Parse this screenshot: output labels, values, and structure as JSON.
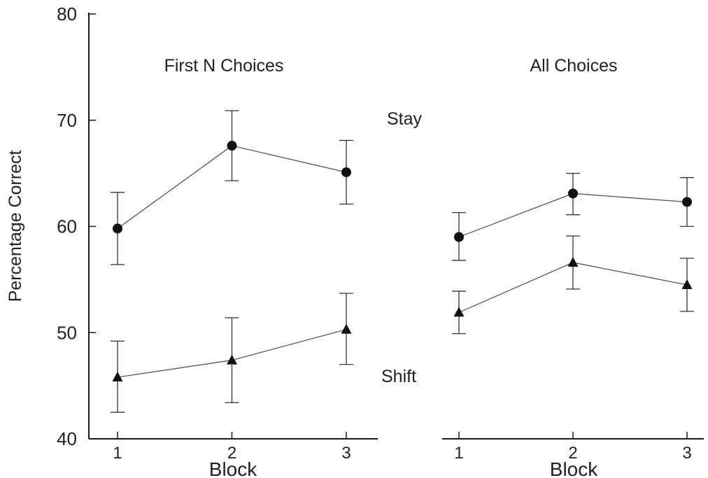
{
  "chart_data": {
    "type": "line",
    "ylabel": "Percentage Correct",
    "ylim": [
      40,
      80
    ],
    "yticks": [
      40,
      50,
      60,
      70,
      80
    ],
    "annotations": [
      "Stay",
      "Shift"
    ],
    "panels": [
      {
        "title": "First N Choices",
        "xlabel": "Block",
        "x": [
          1,
          2,
          3
        ],
        "series": [
          {
            "marker": "circle",
            "values": [
              59.8,
              67.6,
              65.1
            ],
            "err_low": [
              56.4,
              64.3,
              62.1
            ],
            "err_high": [
              63.2,
              70.9,
              68.1
            ]
          },
          {
            "marker": "triangle",
            "values": [
              45.8,
              47.4,
              50.3
            ],
            "err_low": [
              42.5,
              43.4,
              47.0
            ],
            "err_high": [
              49.2,
              51.4,
              53.7
            ]
          }
        ]
      },
      {
        "title": "All Choices",
        "xlabel": "Block",
        "x": [
          1,
          2,
          3
        ],
        "series": [
          {
            "marker": "circle",
            "values": [
              59.0,
              63.1,
              62.3
            ],
            "err_low": [
              56.8,
              61.1,
              60.0
            ],
            "err_high": [
              61.3,
              65.0,
              64.6
            ]
          },
          {
            "marker": "triangle",
            "values": [
              51.9,
              56.6,
              54.5
            ],
            "err_low": [
              49.9,
              54.1,
              52.0
            ],
            "err_high": [
              53.9,
              59.1,
              57.0
            ]
          }
        ]
      }
    ]
  }
}
